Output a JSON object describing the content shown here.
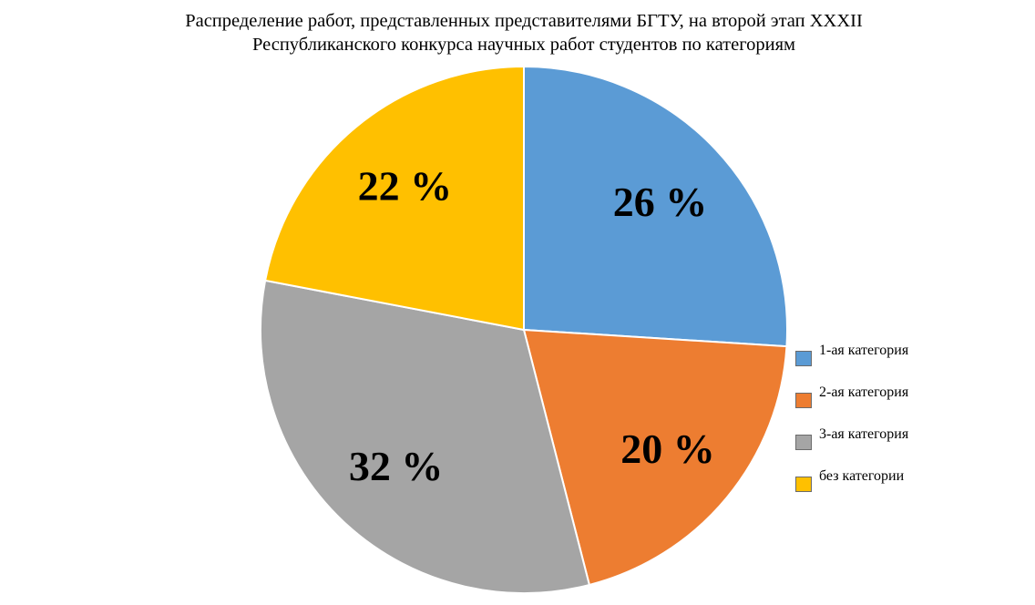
{
  "chart_data": {
    "type": "pie",
    "title_lines": [
      "Распределение работ, представленных представителями БГТУ, на второй этап XXXII",
      "Республиканского конкурса научных работ студентов по категориям"
    ],
    "categories": [
      "1-ая категория",
      "2-ая категория",
      "3-ая категория",
      "без категории"
    ],
    "values": [
      26,
      20,
      32,
      22
    ],
    "labels": [
      "26 %",
      "20 %",
      "32 %",
      "22 %"
    ],
    "colors": [
      "#5b9bd5",
      "#ed7d31",
      "#a5a5a5",
      "#ffc000"
    ],
    "legend_position": "right",
    "start_angle_deg": 0,
    "direction": "clockwise"
  }
}
